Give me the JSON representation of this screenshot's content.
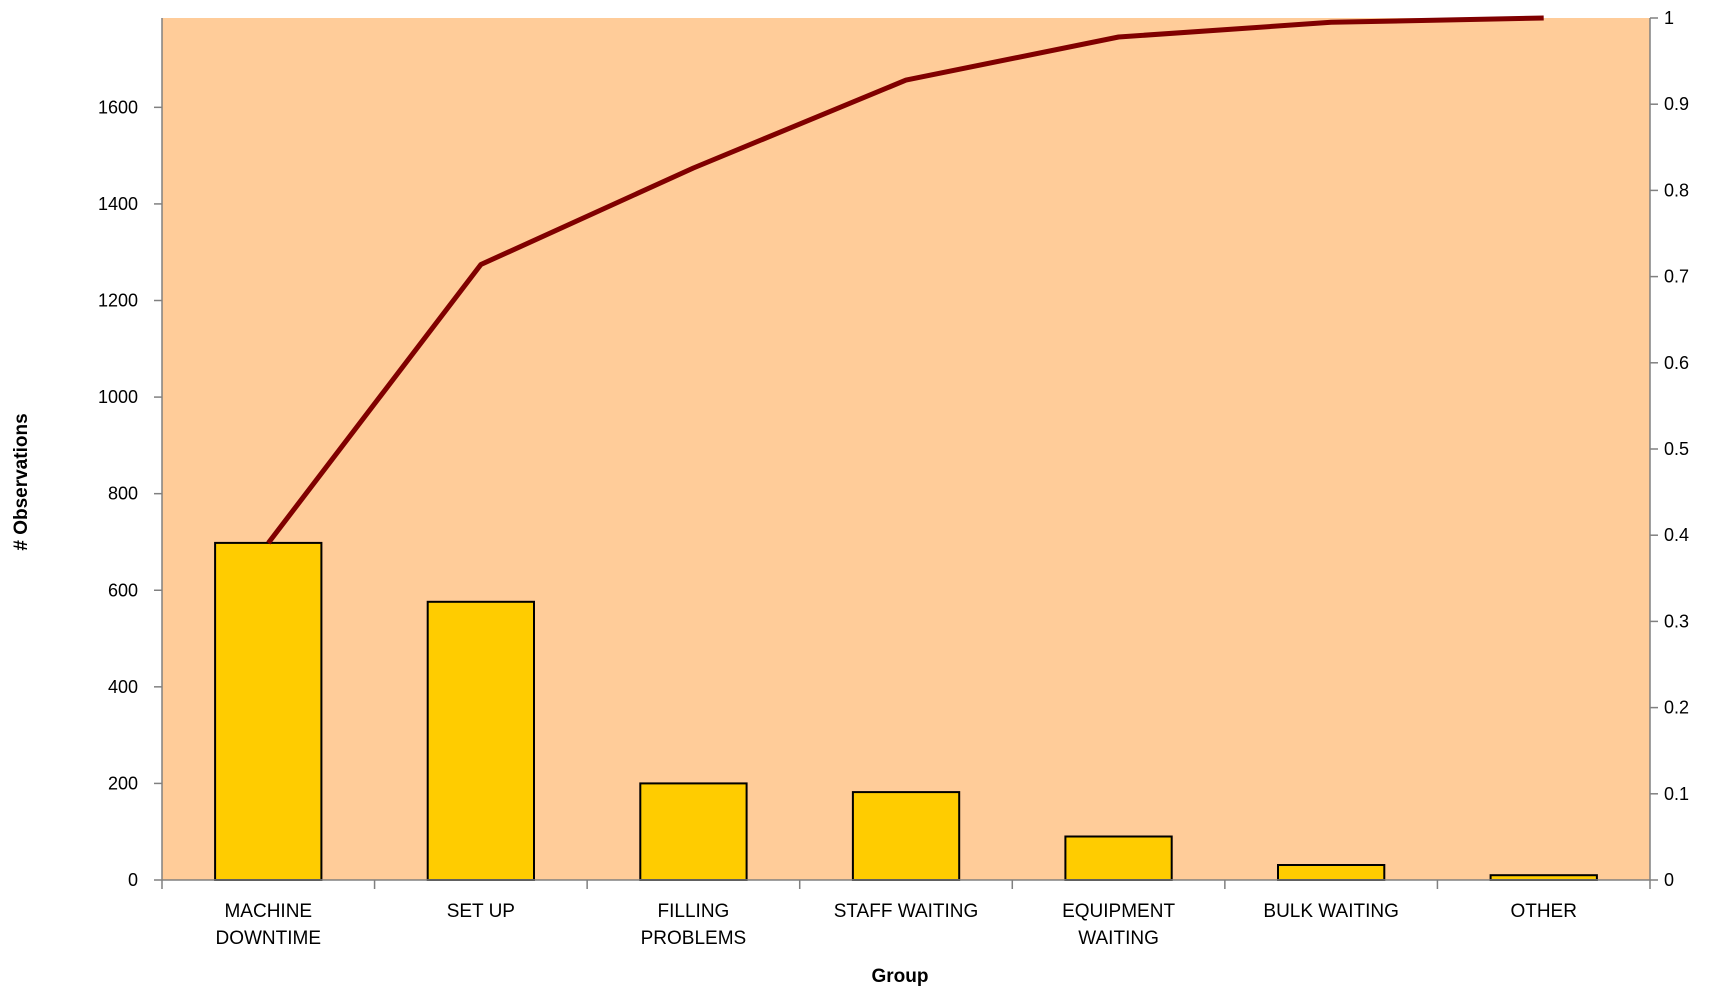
{
  "chart_data": {
    "type": "bar",
    "title": "",
    "xlabel": "Group",
    "ylabel": "# Observations",
    "y2label": "",
    "ylim": [
      0,
      1785
    ],
    "y2lim": [
      0,
      1
    ],
    "yticks": [
      "0",
      "200",
      "400",
      "600",
      "800",
      "1000",
      "1200",
      "1400",
      "1600"
    ],
    "y2ticks": [
      "0",
      "0.1",
      "0.2",
      "0.3",
      "0.4",
      "0.5",
      "0.6",
      "0.7",
      "0.8",
      "0.9",
      "1"
    ],
    "grid": false,
    "legend": "none",
    "categories": [
      [
        "MACHINE",
        "DOWNTIME"
      ],
      [
        "SET UP"
      ],
      [
        "FILLING",
        "PROBLEMS"
      ],
      [
        "STAFF WAITING"
      ],
      [
        "EQUIPMENT",
        "WAITING"
      ],
      [
        "BULK WAITING"
      ],
      [
        "OTHER"
      ]
    ],
    "series": [
      {
        "type": "bar",
        "axis": "left",
        "values": [
          698,
          576,
          200,
          182,
          90,
          31,
          10
        ]
      },
      {
        "type": "line",
        "axis": "right",
        "values": [
          0.391,
          0.714,
          0.826,
          0.928,
          0.978,
          0.995,
          1.0
        ]
      }
    ],
    "colors": {
      "plot_background": "#FFCC99",
      "bar_fill": "#FFCC00",
      "bar_stroke": "#000000",
      "line": "#800000",
      "axis": "#808080"
    }
  }
}
